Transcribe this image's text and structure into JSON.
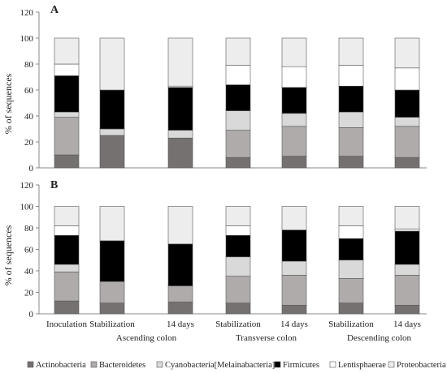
{
  "colors": {
    "Actinobacteria": "#767171",
    "Bacteroidetes": "#afabab",
    "Cyanobacteria[Melainabacteria]": "#d9d9d9",
    "Firmicutes": "#000000",
    "Lentisphaerae": "#ffffff",
    "Proteobacteria": "#ededed"
  },
  "chart_data": [
    {
      "type": "bar",
      "stacked": true,
      "panel_label": "A",
      "ylabel": "% of sequences",
      "ylim": [
        0,
        120
      ],
      "yticks": [
        0,
        20,
        40,
        60,
        80,
        100,
        120
      ],
      "categories": [
        "Inoculation",
        "Stabilization",
        "14 days",
        "Stabilization",
        "14 days",
        "Stabilization",
        "14 days"
      ],
      "series": [
        {
          "name": "Actinobacteria",
          "values": [
            10,
            25,
            23,
            8,
            9,
            9,
            8
          ]
        },
        {
          "name": "Bacteroidetes",
          "values": [
            29,
            0,
            0,
            21,
            23,
            22,
            24
          ]
        },
        {
          "name": "Cyanobacteria[Melainabacteria]",
          "values": [
            4,
            5,
            6,
            15,
            10,
            12,
            7
          ]
        },
        {
          "name": "Firmicutes",
          "values": [
            28,
            30,
            33,
            20,
            20,
            20,
            21
          ]
        },
        {
          "name": "Lentisphaerae",
          "values": [
            9,
            0,
            1,
            15,
            16,
            16,
            17
          ]
        },
        {
          "name": "Proteobacteria",
          "values": [
            20,
            40,
            37,
            21,
            22,
            21,
            23
          ]
        }
      ]
    },
    {
      "type": "bar",
      "stacked": true,
      "panel_label": "B",
      "ylabel": "% of sequences",
      "ylim": [
        0,
        120
      ],
      "yticks": [
        0,
        20,
        40,
        60,
        80,
        100,
        120
      ],
      "categories": [
        "Inoculation",
        "Stabilization",
        "14 days",
        "Stabilization",
        "14 days",
        "Stabilization",
        "14 days"
      ],
      "group_labels": [
        "Ascending colon",
        "Transverse colon",
        "Descending colon"
      ],
      "series": [
        {
          "name": "Actinobacteria",
          "values": [
            12,
            10,
            11,
            10,
            8,
            10,
            8
          ]
        },
        {
          "name": "Bacteroidetes",
          "values": [
            27,
            20,
            15,
            25,
            28,
            23,
            28
          ]
        },
        {
          "name": "Cyanobacteria[Melainabacteria]",
          "values": [
            7,
            0,
            0,
            18,
            13,
            17,
            10
          ]
        },
        {
          "name": "Firmicutes",
          "values": [
            27,
            38,
            39,
            20,
            29,
            20,
            31
          ]
        },
        {
          "name": "Lentisphaerae",
          "values": [
            9,
            0,
            0,
            9,
            0,
            12,
            2
          ]
        },
        {
          "name": "Proteobacteria",
          "values": [
            18,
            32,
            35,
            18,
            22,
            18,
            21
          ]
        }
      ]
    }
  ]
}
